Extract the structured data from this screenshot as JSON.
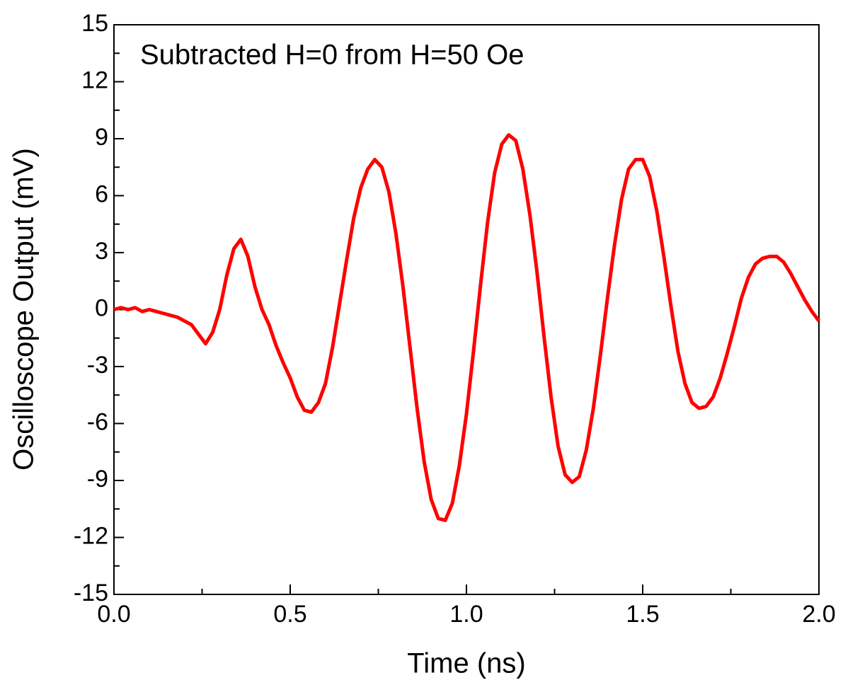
{
  "chart_data": {
    "type": "line",
    "annotation": "Subtracted H=0 from H=50 Oe",
    "x_label": "Time (ns)",
    "y_label": "Oscilloscope Output (mV)",
    "xlim": [
      0,
      2
    ],
    "ylim": [
      -15,
      15
    ],
    "xticks": [
      {
        "value": 0,
        "label": "0.0"
      },
      0.5,
      {
        "value": 1,
        "label": "1.0"
      },
      1.5,
      {
        "value": 2,
        "label": "2.0"
      }
    ],
    "yticks": [
      -15,
      -12,
      -9,
      -6,
      -3,
      0,
      3,
      6,
      9,
      12,
      15
    ],
    "xminorticks": [
      0.25,
      0.75,
      1.25,
      1.75
    ],
    "yminorticks": [
      -13.5,
      -10.5,
      -7.5,
      -4.5,
      -1.5,
      1.5,
      4.5,
      7.5,
      10.5,
      13.5
    ],
    "x": [
      0,
      0.02,
      0.04,
      0.06,
      0.08,
      0.1,
      0.12,
      0.14,
      0.16,
      0.18,
      0.2,
      0.22,
      0.24,
      0.26,
      0.28,
      0.3,
      0.32,
      0.34,
      0.36,
      0.38,
      0.4,
      0.42,
      0.44,
      0.46,
      0.48,
      0.5,
      0.52,
      0.54,
      0.56,
      0.58,
      0.6,
      0.62,
      0.64,
      0.66,
      0.68,
      0.7,
      0.72,
      0.74,
      0.76,
      0.78,
      0.8,
      0.82,
      0.84,
      0.86,
      0.88,
      0.9,
      0.92,
      0.94,
      0.96,
      0.98,
      1,
      1.02,
      1.04,
      1.06,
      1.08,
      1.1,
      1.12,
      1.14,
      1.16,
      1.18,
      1.2,
      1.22,
      1.24,
      1.26,
      1.28,
      1.3,
      1.32,
      1.34,
      1.36,
      1.38,
      1.4,
      1.42,
      1.44,
      1.46,
      1.48,
      1.5,
      1.52,
      1.54,
      1.56,
      1.58,
      1.6,
      1.62,
      1.64,
      1.66,
      1.68,
      1.7,
      1.72,
      1.74,
      1.76,
      1.78,
      1.8,
      1.82,
      1.84,
      1.86,
      1.88,
      1.9,
      1.92,
      1.94,
      1.96,
      1.98,
      2
    ],
    "series": [
      {
        "color": "#ff0000",
        "values": [
          0,
          0.1,
          0,
          0.1,
          -0.1,
          0,
          -0.1,
          -0.2,
          -0.3,
          -0.4,
          -0.6,
          -0.8,
          -1.3,
          -1.8,
          -1.2,
          0,
          1.8,
          3.2,
          3.7,
          2.8,
          1.2,
          0,
          -0.8,
          -1.9,
          -2.8,
          -3.6,
          -4.6,
          -5.3,
          -5.4,
          -4.9,
          -3.9,
          -2,
          0.3,
          2.6,
          4.8,
          6.4,
          7.4,
          7.9,
          7.5,
          6.2,
          4,
          1.2,
          -2,
          -5.2,
          -8,
          -10,
          -11,
          -11.1,
          -10.2,
          -8.2,
          -5.5,
          -2.2,
          1.3,
          4.6,
          7.2,
          8.7,
          9.2,
          8.9,
          7.4,
          5,
          2,
          -1.4,
          -4.6,
          -7.2,
          -8.7,
          -9.1,
          -8.8,
          -7.4,
          -5.2,
          -2.4,
          0.6,
          3.4,
          5.8,
          7.4,
          7.9,
          7.9,
          7,
          5.2,
          2.8,
          0.2,
          -2.2,
          -3.9,
          -4.9,
          -5.2,
          -5.1,
          -4.6,
          -3.6,
          -2.3,
          -0.9,
          0.6,
          1.7,
          2.4,
          2.7,
          2.8,
          2.8,
          2.5,
          1.9,
          1.2,
          0.5,
          -0.1,
          -0.6
        ]
      }
    ]
  }
}
